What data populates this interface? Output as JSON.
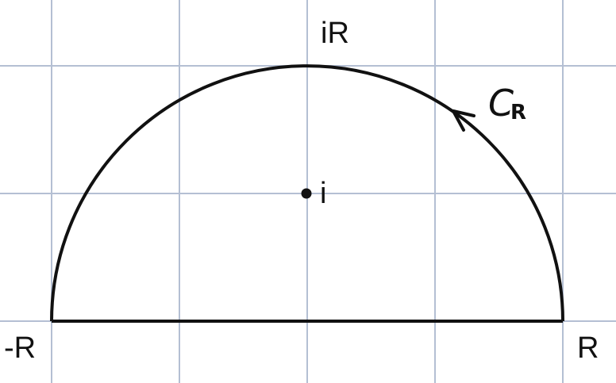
{
  "diagram": {
    "label_top": "iR",
    "label_left": "-R",
    "label_right": "R",
    "label_pole": "i",
    "contour_label_main": "C",
    "contour_label_sub": "R",
    "colors": {
      "grid": "#b4bfd3",
      "stroke": "#111111",
      "background": "#ffffff"
    }
  }
}
